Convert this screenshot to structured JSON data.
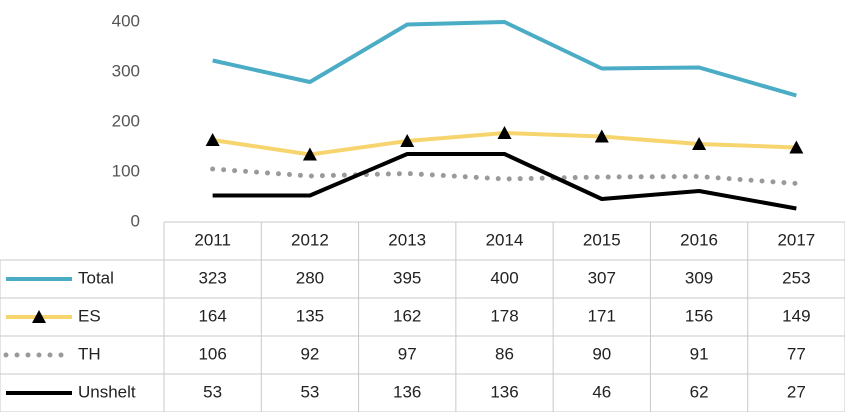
{
  "chart_data": {
    "type": "line",
    "categories": [
      "2011",
      "2012",
      "2013",
      "2014",
      "2015",
      "2016",
      "2017"
    ],
    "series": [
      {
        "name": "Total",
        "color": "#4bacc6",
        "values": [
          323,
          280,
          395,
          400,
          307,
          309,
          253
        ]
      },
      {
        "name": "ES",
        "color": "#f7d56e",
        "marker": "triangle",
        "values": [
          164,
          135,
          162,
          178,
          171,
          156,
          149
        ]
      },
      {
        "name": "TH",
        "color": "#9a9a9a",
        "style": "dotted",
        "values": [
          106,
          92,
          97,
          86,
          90,
          91,
          77
        ]
      },
      {
        "name": "Unshelt",
        "color": "#000000",
        "values": [
          53,
          53,
          136,
          136,
          46,
          62,
          27
        ]
      }
    ],
    "ylim": [
      0,
      400
    ],
    "yticks": [
      0,
      100,
      200,
      300,
      400
    ],
    "grid": false,
    "data_table": true
  }
}
